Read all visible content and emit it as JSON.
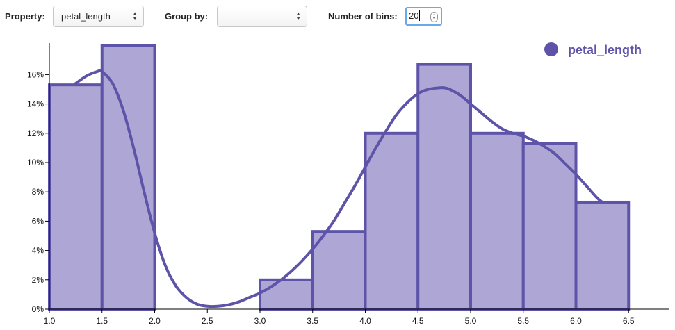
{
  "controls": {
    "property_label": "Property:",
    "property_value": "petal_length",
    "group_by_label": "Group by:",
    "group_by_value": "",
    "bins_label": "Number of bins:",
    "bins_value": "20"
  },
  "colors": {
    "bar_fill": "#aea6d4",
    "bar_stroke": "#5d53a8",
    "curve": "#5d53a8",
    "legend": "#5d53a8"
  },
  "chart_data": {
    "type": "bar",
    "legend": [
      {
        "name": "petal_length",
        "position": "top-right"
      }
    ],
    "xlim": [
      1.0,
      6.9
    ],
    "ylim": [
      0,
      17
    ],
    "x_ticks": [
      1.0,
      1.5,
      2.0,
      2.5,
      3.0,
      3.5,
      4.0,
      4.5,
      5.0,
      5.5,
      6.0,
      6.5
    ],
    "x_tick_labels": [
      "1.0",
      "1.5",
      "2.0",
      "2.5",
      "3.0",
      "3.5",
      "4.0",
      "4.5",
      "5.0",
      "5.5",
      "6.0",
      "6.5"
    ],
    "y_ticks": [
      0,
      2,
      4,
      6,
      8,
      10,
      12,
      14,
      16
    ],
    "y_tick_labels": [
      "0%",
      "2%",
      "4%",
      "6%",
      "8%",
      "10%",
      "12%",
      "14%",
      "16%"
    ],
    "bins": [
      {
        "x0": 1.0,
        "x1": 1.5,
        "value": 15.3
      },
      {
        "x0": 1.5,
        "x1": 2.0,
        "value": 18.0
      },
      {
        "x0": 2.0,
        "x1": 2.5,
        "value": 0
      },
      {
        "x0": 2.5,
        "x1": 3.0,
        "value": 0
      },
      {
        "x0": 3.0,
        "x1": 3.5,
        "value": 2.0
      },
      {
        "x0": 3.5,
        "x1": 4.0,
        "value": 5.3
      },
      {
        "x0": 4.0,
        "x1": 4.5,
        "value": 12.0
      },
      {
        "x0": 4.5,
        "x1": 5.0,
        "value": 16.7
      },
      {
        "x0": 5.0,
        "x1": 5.5,
        "value": 12.0
      },
      {
        "x0": 5.5,
        "x1": 6.0,
        "value": 11.3
      },
      {
        "x0": 6.0,
        "x1": 6.5,
        "value": 7.3
      }
    ],
    "density_curve": {
      "x": [
        1.25,
        1.35,
        1.45,
        1.5,
        1.6,
        1.7,
        1.8,
        1.9,
        2.0,
        2.1,
        2.2,
        2.3,
        2.4,
        2.5,
        2.6,
        2.7,
        2.8,
        2.9,
        3.0,
        3.1,
        3.2,
        3.3,
        3.4,
        3.5,
        3.6,
        3.7,
        3.8,
        3.9,
        4.0,
        4.1,
        4.2,
        4.3,
        4.4,
        4.5,
        4.6,
        4.7,
        4.75,
        4.8,
        4.9,
        5.0,
        5.1,
        5.2,
        5.3,
        5.4,
        5.5,
        5.6,
        5.7,
        5.8,
        5.9,
        6.0,
        6.1,
        6.2,
        6.25
      ],
      "y": [
        15.4,
        15.9,
        16.2,
        16.2,
        15.4,
        13.6,
        11.0,
        8.0,
        5.2,
        3.0,
        1.6,
        0.8,
        0.35,
        0.2,
        0.2,
        0.3,
        0.5,
        0.8,
        1.1,
        1.5,
        2.0,
        2.6,
        3.3,
        4.1,
        5.0,
        6.0,
        7.2,
        8.4,
        9.7,
        11.0,
        12.2,
        13.3,
        14.1,
        14.7,
        15.0,
        15.1,
        15.1,
        15.0,
        14.6,
        14.0,
        13.4,
        12.8,
        12.3,
        12.0,
        11.8,
        11.5,
        11.1,
        10.6,
        9.9,
        9.2,
        8.4,
        7.6,
        7.3
      ]
    }
  }
}
